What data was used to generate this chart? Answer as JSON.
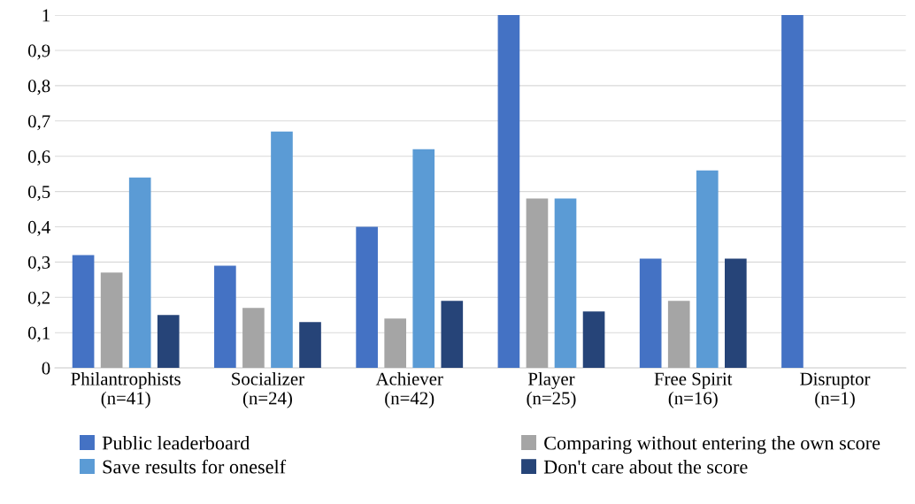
{
  "chart_data": {
    "type": "bar",
    "categories": [
      "Philantrophists\n(n=41)",
      "Socializer\n(n=24)",
      "Achiever\n(n=42)",
      "Player\n(n=25)",
      "Free Spirit\n(n=16)",
      "Disruptor\n(n=1)"
    ],
    "series": [
      {
        "name": "Public leaderboard",
        "color": "#4472c4",
        "values": [
          0.32,
          0.29,
          0.4,
          1.0,
          0.31,
          1.0
        ]
      },
      {
        "name": "Comparing without entering the own score",
        "color": "#a5a5a5",
        "values": [
          0.27,
          0.17,
          0.14,
          0.48,
          0.19,
          0
        ]
      },
      {
        "name": "Save results for oneself",
        "color": "#5b9bd5",
        "values": [
          0.54,
          0.67,
          0.62,
          0.48,
          0.56,
          0
        ]
      },
      {
        "name": "Don't care about the score",
        "color": "#264478",
        "values": [
          0.15,
          0.13,
          0.19,
          0.16,
          0.31,
          0
        ]
      }
    ],
    "ylim": [
      0,
      1
    ],
    "yticks": [
      {
        "value": 0,
        "label": "0"
      },
      {
        "value": 0.1,
        "label": "0,1"
      },
      {
        "value": 0.2,
        "label": "0,2"
      },
      {
        "value": 0.3,
        "label": "0,3"
      },
      {
        "value": 0.4,
        "label": "0,4"
      },
      {
        "value": 0.5,
        "label": "0,5"
      },
      {
        "value": 0.6,
        "label": "0,6"
      },
      {
        "value": 0.7,
        "label": "0,7"
      },
      {
        "value": 0.8,
        "label": "0,8"
      },
      {
        "value": 0.9,
        "label": "0,9"
      },
      {
        "value": 1,
        "label": "1"
      }
    ],
    "grid": "y",
    "legend": "bottom"
  }
}
